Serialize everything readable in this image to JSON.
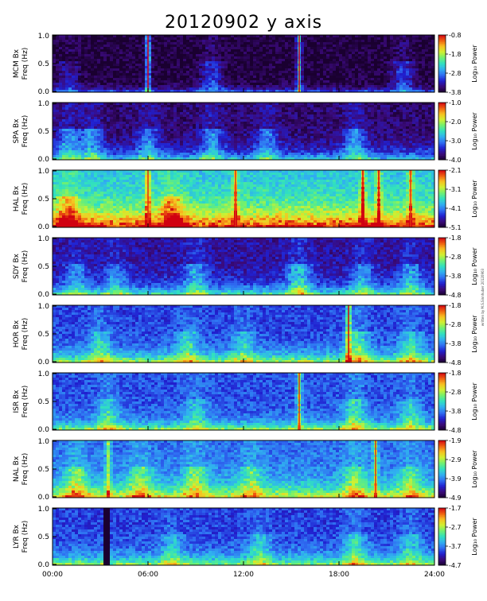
{
  "title": "20120902 y axis",
  "x_ticks": [
    "00:00",
    "06:00",
    "12:00",
    "18:00",
    "24:00"
  ],
  "y_ticks": [
    "0.0",
    "0.5",
    "1.0"
  ],
  "freq_label": "Freq (Hz)",
  "power_label": "Log₁₀ Power",
  "side_note": "written by M.S.Sinnhuber 20120903",
  "colormap": [
    "#1a0030",
    "#3a0a7a",
    "#2020d0",
    "#2f6ff2",
    "#30b0f0",
    "#30e0c0",
    "#70f070",
    "#d0f030",
    "#f8c020",
    "#f06010",
    "#d00010"
  ],
  "chart_data": [
    {
      "type": "heatmap",
      "station": "MCM Bx",
      "xlabel": "",
      "ylabel": "Freq (Hz)",
      "ylim": [
        0,
        1
      ],
      "xlim": [
        "00:00",
        "24:00"
      ],
      "colorbar_ticks": [
        "-0.8",
        "-1.8",
        "-2.8",
        "-3.8"
      ],
      "colorbar_range": [
        -3.8,
        -0.8
      ],
      "background": 0.02,
      "lowband": 0.35,
      "lowwidth": 0.06,
      "bursts": [
        [
          1.0,
          0.3
        ],
        [
          6.0,
          1.0
        ],
        [
          10.0,
          0.5
        ],
        [
          15.5,
          1.0
        ],
        [
          22.0,
          0.5
        ]
      ]
    },
    {
      "type": "heatmap",
      "station": "SPA Bx",
      "xlabel": "",
      "ylabel": "Freq (Hz)",
      "ylim": [
        0,
        1
      ],
      "xlim": [
        "00:00",
        "24:00"
      ],
      "colorbar_ticks": [
        "-1.0",
        "-2.0",
        "-3.0",
        "-4.0"
      ],
      "colorbar_range": [
        -4.0,
        -1.0
      ],
      "background": 0.08,
      "lowband": 0.45,
      "lowwidth": 0.15,
      "bursts": [
        [
          1.0,
          0.6
        ],
        [
          2.5,
          0.6
        ],
        [
          6.0,
          0.5
        ],
        [
          10.0,
          0.6
        ],
        [
          13.5,
          0.5
        ],
        [
          19.0,
          0.6
        ]
      ]
    },
    {
      "type": "heatmap",
      "station": "HAL Bx",
      "xlabel": "",
      "ylabel": "Freq (Hz)",
      "ylim": [
        0,
        1
      ],
      "xlim": [
        "00:00",
        "24:00"
      ],
      "colorbar_ticks": [
        "-2.1",
        "-3.1",
        "-4.1",
        "-5.1"
      ],
      "colorbar_range": [
        -5.1,
        -2.1
      ],
      "background": 0.42,
      "lowband": 0.7,
      "lowwidth": 0.3,
      "bursts": [
        [
          1.0,
          0.7
        ],
        [
          6.0,
          0.8
        ],
        [
          7.5,
          0.7
        ],
        [
          11.5,
          0.8
        ],
        [
          19.5,
          0.9
        ],
        [
          20.5,
          0.85
        ],
        [
          22.5,
          0.8
        ]
      ]
    },
    {
      "type": "heatmap",
      "station": "SDY Bx",
      "xlabel": "",
      "ylabel": "Freq (Hz)",
      "ylim": [
        0,
        1
      ],
      "xlim": [
        "00:00",
        "24:00"
      ],
      "colorbar_ticks": [
        "-1.8",
        "-2.8",
        "-3.8",
        "-4.8"
      ],
      "colorbar_range": [
        -4.8,
        -1.8
      ],
      "background": 0.14,
      "lowband": 0.5,
      "lowwidth": 0.15,
      "bursts": [
        [
          1.5,
          0.4
        ],
        [
          4.0,
          0.4
        ],
        [
          9.0,
          0.5
        ],
        [
          15.5,
          0.7
        ],
        [
          19.5,
          0.5
        ],
        [
          22.5,
          0.5
        ]
      ]
    },
    {
      "type": "heatmap",
      "station": "HOR Bx",
      "xlabel": "",
      "ylabel": "Freq (Hz)",
      "ylim": [
        0,
        1
      ],
      "xlim": [
        "00:00",
        "24:00"
      ],
      "colorbar_ticks": [
        "-1.8",
        "-2.8",
        "-3.8",
        "-4.8"
      ],
      "colorbar_range": [
        -4.8,
        -1.8
      ],
      "background": 0.24,
      "lowband": 0.55,
      "lowwidth": 0.15,
      "bursts": [
        [
          3.0,
          0.5
        ],
        [
          8.5,
          0.5
        ],
        [
          12.0,
          0.4
        ],
        [
          18.6,
          0.9
        ],
        [
          19.2,
          0.6
        ],
        [
          22.5,
          0.5
        ]
      ]
    },
    {
      "type": "heatmap",
      "station": "ISR Bx",
      "xlabel": "",
      "ylabel": "Freq (Hz)",
      "ylim": [
        0,
        1
      ],
      "xlim": [
        "00:00",
        "24:00"
      ],
      "colorbar_ticks": [
        "-1.8",
        "-2.8",
        "-3.8",
        "-4.8"
      ],
      "colorbar_range": [
        -4.8,
        -1.8
      ],
      "background": 0.26,
      "lowband": 0.5,
      "lowwidth": 0.12,
      "bursts": [
        [
          3.5,
          0.5
        ],
        [
          9.0,
          0.45
        ],
        [
          15.5,
          0.8
        ],
        [
          19.0,
          0.6
        ],
        [
          22.5,
          0.5
        ]
      ]
    },
    {
      "type": "heatmap",
      "station": "NAL Bx",
      "xlabel": "",
      "ylabel": "Freq (Hz)",
      "ylim": [
        0,
        1
      ],
      "xlim": [
        "00:00",
        "24:00"
      ],
      "colorbar_ticks": [
        "-1.9",
        "-2.9",
        "-3.9",
        "-4.9"
      ],
      "colorbar_range": [
        -4.9,
        -1.9
      ],
      "background": 0.3,
      "lowband": 0.55,
      "lowwidth": 0.2,
      "bursts": [
        [
          1.5,
          0.65
        ],
        [
          3.5,
          0.75
        ],
        [
          5.5,
          0.6
        ],
        [
          9.0,
          0.6
        ],
        [
          12.5,
          0.5
        ],
        [
          19.0,
          0.6
        ],
        [
          20.3,
          0.8
        ],
        [
          22.5,
          0.5
        ]
      ]
    },
    {
      "type": "heatmap",
      "station": "LYR Bx",
      "xlabel": "",
      "ylabel": "Freq (Hz)",
      "ylim": [
        0,
        1
      ],
      "xlim": [
        "00:00",
        "24:00"
      ],
      "colorbar_ticks": [
        "-1.7",
        "-2.7",
        "-3.7",
        "-4.7"
      ],
      "colorbar_range": [
        -4.7,
        -1.7
      ],
      "background": 0.24,
      "lowband": 0.5,
      "lowwidth": 0.15,
      "gap_hours": [
        3.2,
        3.5
      ],
      "bursts": [
        [
          7.5,
          0.4
        ],
        [
          13.0,
          0.45
        ],
        [
          19.0,
          0.55
        ],
        [
          22.5,
          0.45
        ]
      ]
    }
  ]
}
